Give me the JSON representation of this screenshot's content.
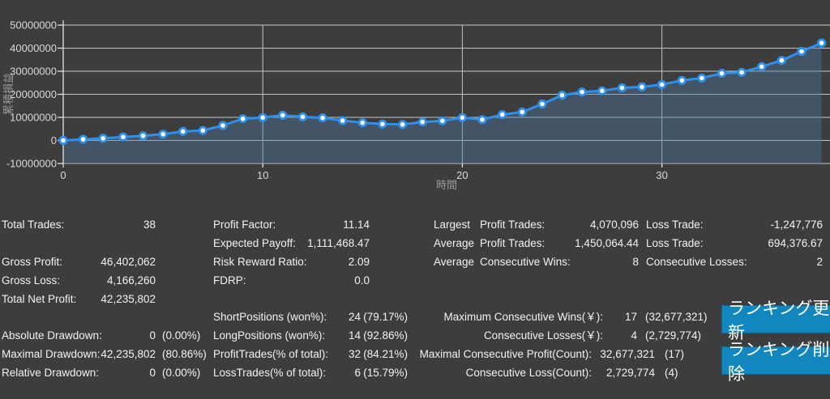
{
  "app": {
    "background": "#3d3d3d",
    "text_color": "#f2f2f2",
    "accent_button_color": "#1186bf"
  },
  "chart_data": {
    "type": "area",
    "title": "",
    "xlabel": "時間",
    "ylabel": "累積損益",
    "x": [
      0,
      1,
      2,
      3,
      4,
      5,
      6,
      7,
      8,
      9,
      10,
      11,
      12,
      13,
      14,
      15,
      16,
      17,
      18,
      19,
      20,
      21,
      22,
      23,
      24,
      25,
      26,
      27,
      28,
      29,
      30,
      31,
      32,
      33,
      34,
      35,
      36,
      37,
      38
    ],
    "values": [
      0,
      500000,
      900000,
      1500000,
      2000000,
      2700000,
      3900000,
      4300000,
      6500000,
      9400000,
      9900000,
      10900000,
      10200000,
      9800000,
      8600000,
      7700000,
      7100000,
      6900000,
      8000000,
      8500000,
      9900000,
      9000000,
      11200000,
      12300000,
      15800000,
      19600000,
      21000000,
      21500000,
      22800000,
      23200000,
      24200000,
      26000000,
      27000000,
      29100000,
      29500000,
      32000000,
      34700000,
      38600000,
      42235802
    ],
    "ylim": [
      -10000000,
      50000000
    ],
    "ytick_step": 10000000,
    "xticks": [
      0,
      10,
      20,
      30
    ],
    "grid": true,
    "legend": "none",
    "line_color": "#2e90ec",
    "marker_fill": "#ffffff",
    "fill_color": "rgba(75,124,172,0.38)",
    "grid_color": "#c3c6c9",
    "axis_color": "#e3e3e3",
    "tick_label_color": "#d8d8d8",
    "axis_title_color": "#9a9a9a"
  },
  "stats": {
    "colA": [
      {
        "label": "Total Trades:",
        "value": "38"
      },
      {
        "label": "Gross Profit:",
        "value": "46,402,062"
      },
      {
        "label": "Gross Loss:",
        "value": "4,166,260"
      },
      {
        "label": "Total Net Profit:",
        "value": "42,235,802"
      },
      {
        "label": "Absolute Drawdown:",
        "value": "0",
        "pct": "(0.00%)"
      },
      {
        "label": "Maximal Drawdown:",
        "value": "42,235,802",
        "pct": "(80.86%)"
      },
      {
        "label": "Relative Drawdown:",
        "value": "0",
        "pct": "(0.00%)"
      }
    ],
    "colB": [
      {
        "label": "Profit Factor:",
        "value": "11.14"
      },
      {
        "label": "Expected Payoff:",
        "value": "1,111,468.47"
      },
      {
        "label": "Risk Reward Ratio:",
        "value": "2.09"
      },
      {
        "label": "FDRP:",
        "value": "0.0"
      },
      {
        "label": "ShortPositions (won%):",
        "value": "24",
        "pct": "(79.17%)"
      },
      {
        "label": "LongPositions (won%):",
        "value": "14",
        "pct": "(92.86%)"
      },
      {
        "label": "ProfitTrades(% of total):",
        "value": "32",
        "pct": "(84.21%)"
      },
      {
        "label": "LossTrades(% of total):",
        "value": "6",
        "pct": "(15.79%)"
      }
    ],
    "colC": [
      {
        "prefix": "Largest",
        "label": "Profit Trades:",
        "value": "4,070,096"
      },
      {
        "prefix": "Average",
        "label": "Profit Trades:",
        "value": "1,450,064.44"
      },
      {
        "prefix": "Average",
        "label": "Consecutive Wins:",
        "value": "8"
      },
      {
        "label": "Maximum Consecutive Wins(￥):",
        "value": "17",
        "pct": "(32,677,321)"
      },
      {
        "label": "Consecutive Losses(￥):",
        "value": "4",
        "pct": "(2,729,774)"
      },
      {
        "label": "Maximal Consecutive Profit(Count):",
        "value": "32,677,321",
        "pct": "(17)"
      },
      {
        "label": "Consecutive Loss(Count):",
        "value": "2,729,774",
        "pct": "(4)"
      }
    ],
    "colD": [
      {
        "label": "Loss Trade:",
        "value": "-1,247,776"
      },
      {
        "label": "Loss Trade:",
        "value": "694,376.67"
      },
      {
        "label": "Consecutive Losses:",
        "value": "2"
      }
    ]
  },
  "buttons": {
    "update_label": "ランキング更新",
    "delete_label": "ランキング削除"
  }
}
